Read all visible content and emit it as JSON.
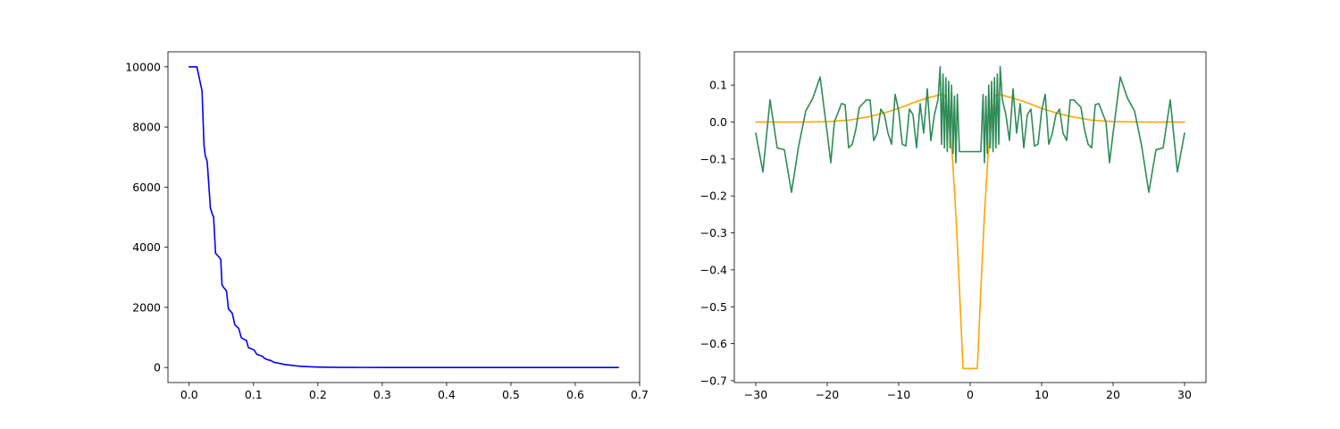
{
  "chart_data": [
    {
      "type": "line",
      "title": "",
      "xlabel": "",
      "ylabel": "",
      "xlim": [
        -0.033,
        0.7
      ],
      "ylim": [
        -500,
        10500
      ],
      "xticks": [
        0.0,
        0.1,
        0.2,
        0.3,
        0.4,
        0.5,
        0.6,
        0.7
      ],
      "xtick_labels": [
        "0.0",
        "0.1",
        "0.2",
        "0.3",
        "0.4",
        "0.5",
        "0.6",
        "0.7"
      ],
      "yticks": [
        0,
        2000,
        4000,
        6000,
        8000,
        10000
      ],
      "ytick_labels": [
        "0",
        "2000",
        "4000",
        "6000",
        "8000",
        "10000"
      ],
      "grid": false,
      "colors": [
        "#0000ff"
      ],
      "series": [
        {
          "x": [
            0.0,
            0.012,
            0.016,
            0.02,
            0.023,
            0.025,
            0.028,
            0.033,
            0.036,
            0.038,
            0.041,
            0.046,
            0.049,
            0.051,
            0.054,
            0.058,
            0.061,
            0.064,
            0.067,
            0.071,
            0.074,
            0.077,
            0.081,
            0.085,
            0.089,
            0.092,
            0.097,
            0.101,
            0.105,
            0.109,
            0.113,
            0.118,
            0.122,
            0.127,
            0.132,
            0.137,
            0.142,
            0.148,
            0.154,
            0.16,
            0.166,
            0.173,
            0.18,
            0.19,
            0.2,
            0.21,
            0.22,
            0.235,
            0.25,
            0.27,
            0.3,
            0.35,
            0.4,
            0.5,
            0.6,
            0.667
          ],
          "y": [
            10000,
            10000,
            9600,
            9200,
            7400,
            7050,
            6850,
            5300,
            5100,
            5000,
            3800,
            3680,
            3600,
            2750,
            2650,
            2550,
            1950,
            1880,
            1800,
            1420,
            1360,
            1300,
            990,
            940,
            900,
            660,
            620,
            580,
            440,
            410,
            380,
            290,
            260,
            230,
            170,
            150,
            130,
            100,
            85,
            70,
            55,
            42,
            32,
            22,
            15,
            10,
            7,
            4,
            2.5,
            1.5,
            0.8,
            0.3,
            0.1,
            0.02,
            0.01,
            0.0
          ]
        }
      ]
    },
    {
      "type": "line",
      "title": "",
      "xlabel": "",
      "ylabel": "",
      "xlim": [
        -33,
        33
      ],
      "ylim": [
        -0.705,
        0.19
      ],
      "xticks": [
        -30,
        -20,
        -10,
        0,
        10,
        20,
        30
      ],
      "xtick_labels": [
        "−30",
        "−20",
        "−10",
        "0",
        "10",
        "20",
        "30"
      ],
      "yticks": [
        -0.7,
        -0.6,
        -0.5,
        -0.4,
        -0.3,
        -0.2,
        -0.1,
        0.0,
        0.1
      ],
      "ytick_labels": [
        "−0.7",
        "−0.6",
        "−0.5",
        "−0.4",
        "−0.3",
        "−0.2",
        "−0.1",
        "0.0",
        "0.1"
      ],
      "grid": false,
      "colors": [
        "#ffa500",
        "#2e8b57"
      ],
      "series": [
        {
          "x": [
            -30,
            -24,
            -20,
            -17,
            -14,
            -12,
            -10,
            -8,
            -6,
            -5,
            -4,
            -3.5,
            -3,
            -2.5,
            -2,
            -1.5,
            -1,
            1,
            1.5,
            2,
            2.5,
            3,
            3.5,
            4,
            5,
            6,
            8,
            10,
            12,
            14,
            17,
            20,
            24,
            30
          ],
          "y": [
            0.0,
            0.0,
            0.001,
            0.005,
            0.015,
            0.025,
            0.037,
            0.052,
            0.065,
            0.07,
            0.075,
            0.07,
            0.0,
            -0.09,
            -0.25,
            -0.45,
            -0.667,
            -0.667,
            -0.45,
            -0.25,
            -0.09,
            0.0,
            0.07,
            0.075,
            0.07,
            0.065,
            0.052,
            0.037,
            0.025,
            0.015,
            0.005,
            0.001,
            0.0,
            0.0
          ]
        },
        {
          "x": [
            -30,
            -29,
            -28,
            -27,
            -26,
            -25,
            -24,
            -23,
            -22,
            -21,
            -20,
            -19.5,
            -19,
            -18,
            -17.5,
            -17,
            -16.5,
            -16,
            -15.5,
            -15,
            -14.5,
            -14,
            -13.5,
            -13,
            -12.5,
            -12,
            -11.5,
            -11,
            -10.5,
            -10,
            -9.5,
            -9,
            -8.5,
            -8,
            -7.5,
            -7,
            -6.5,
            -6,
            -5.5,
            -5,
            -4.5,
            -4.2,
            -4,
            -3.8,
            -3.6,
            -3.4,
            -3.2,
            -3,
            -2.8,
            -2.6,
            -2.4,
            -2.2,
            -2,
            -1.8,
            -1.5,
            -1,
            0,
            1,
            1.5,
            1.8,
            2,
            2.2,
            2.4,
            2.6,
            2.8,
            3,
            3.2,
            3.4,
            3.6,
            3.8,
            4,
            4.2,
            4.5,
            5,
            5.5,
            6,
            6.5,
            7,
            7.5,
            8,
            8.5,
            9,
            9.5,
            10,
            10.5,
            11,
            11.5,
            12,
            12.5,
            13,
            13.5,
            14,
            14.5,
            15,
            15.5,
            16,
            16.5,
            17,
            17.5,
            18,
            19,
            19.5,
            20,
            21,
            22,
            23,
            24,
            25,
            26,
            27,
            28,
            29,
            30
          ],
          "y": [
            -0.03,
            -0.135,
            0.06,
            -0.07,
            -0.075,
            -0.19,
            -0.065,
            0.03,
            0.065,
            0.122,
            -0.03,
            -0.11,
            0.0,
            0.05,
            0.047,
            -0.07,
            -0.06,
            -0.02,
            0.04,
            0.05,
            0.06,
            0.06,
            -0.05,
            -0.03,
            0.035,
            0.02,
            -0.03,
            -0.06,
            0.075,
            0.03,
            -0.06,
            -0.065,
            0.035,
            0.02,
            -0.07,
            0.05,
            -0.03,
            0.09,
            -0.05,
            0.02,
            0.06,
            0.15,
            -0.06,
            0.13,
            -0.07,
            0.12,
            -0.08,
            0.11,
            -0.07,
            0.1,
            -0.085,
            0.07,
            -0.11,
            0.075,
            -0.08,
            -0.08,
            -0.08,
            -0.08,
            -0.08,
            0.075,
            -0.11,
            0.07,
            -0.085,
            0.1,
            -0.07,
            0.11,
            -0.08,
            0.12,
            -0.07,
            0.13,
            -0.06,
            0.15,
            0.06,
            0.02,
            -0.05,
            0.09,
            -0.03,
            0.05,
            -0.07,
            0.02,
            0.035,
            -0.065,
            -0.06,
            0.03,
            0.075,
            -0.06,
            -0.03,
            0.02,
            0.035,
            -0.03,
            -0.05,
            0.06,
            0.06,
            0.05,
            0.04,
            -0.02,
            -0.06,
            -0.07,
            0.047,
            0.05,
            0.0,
            -0.11,
            -0.03,
            0.122,
            0.065,
            0.03,
            -0.065,
            -0.19,
            -0.075,
            -0.07,
            0.06,
            -0.135,
            -0.03
          ]
        }
      ]
    }
  ]
}
